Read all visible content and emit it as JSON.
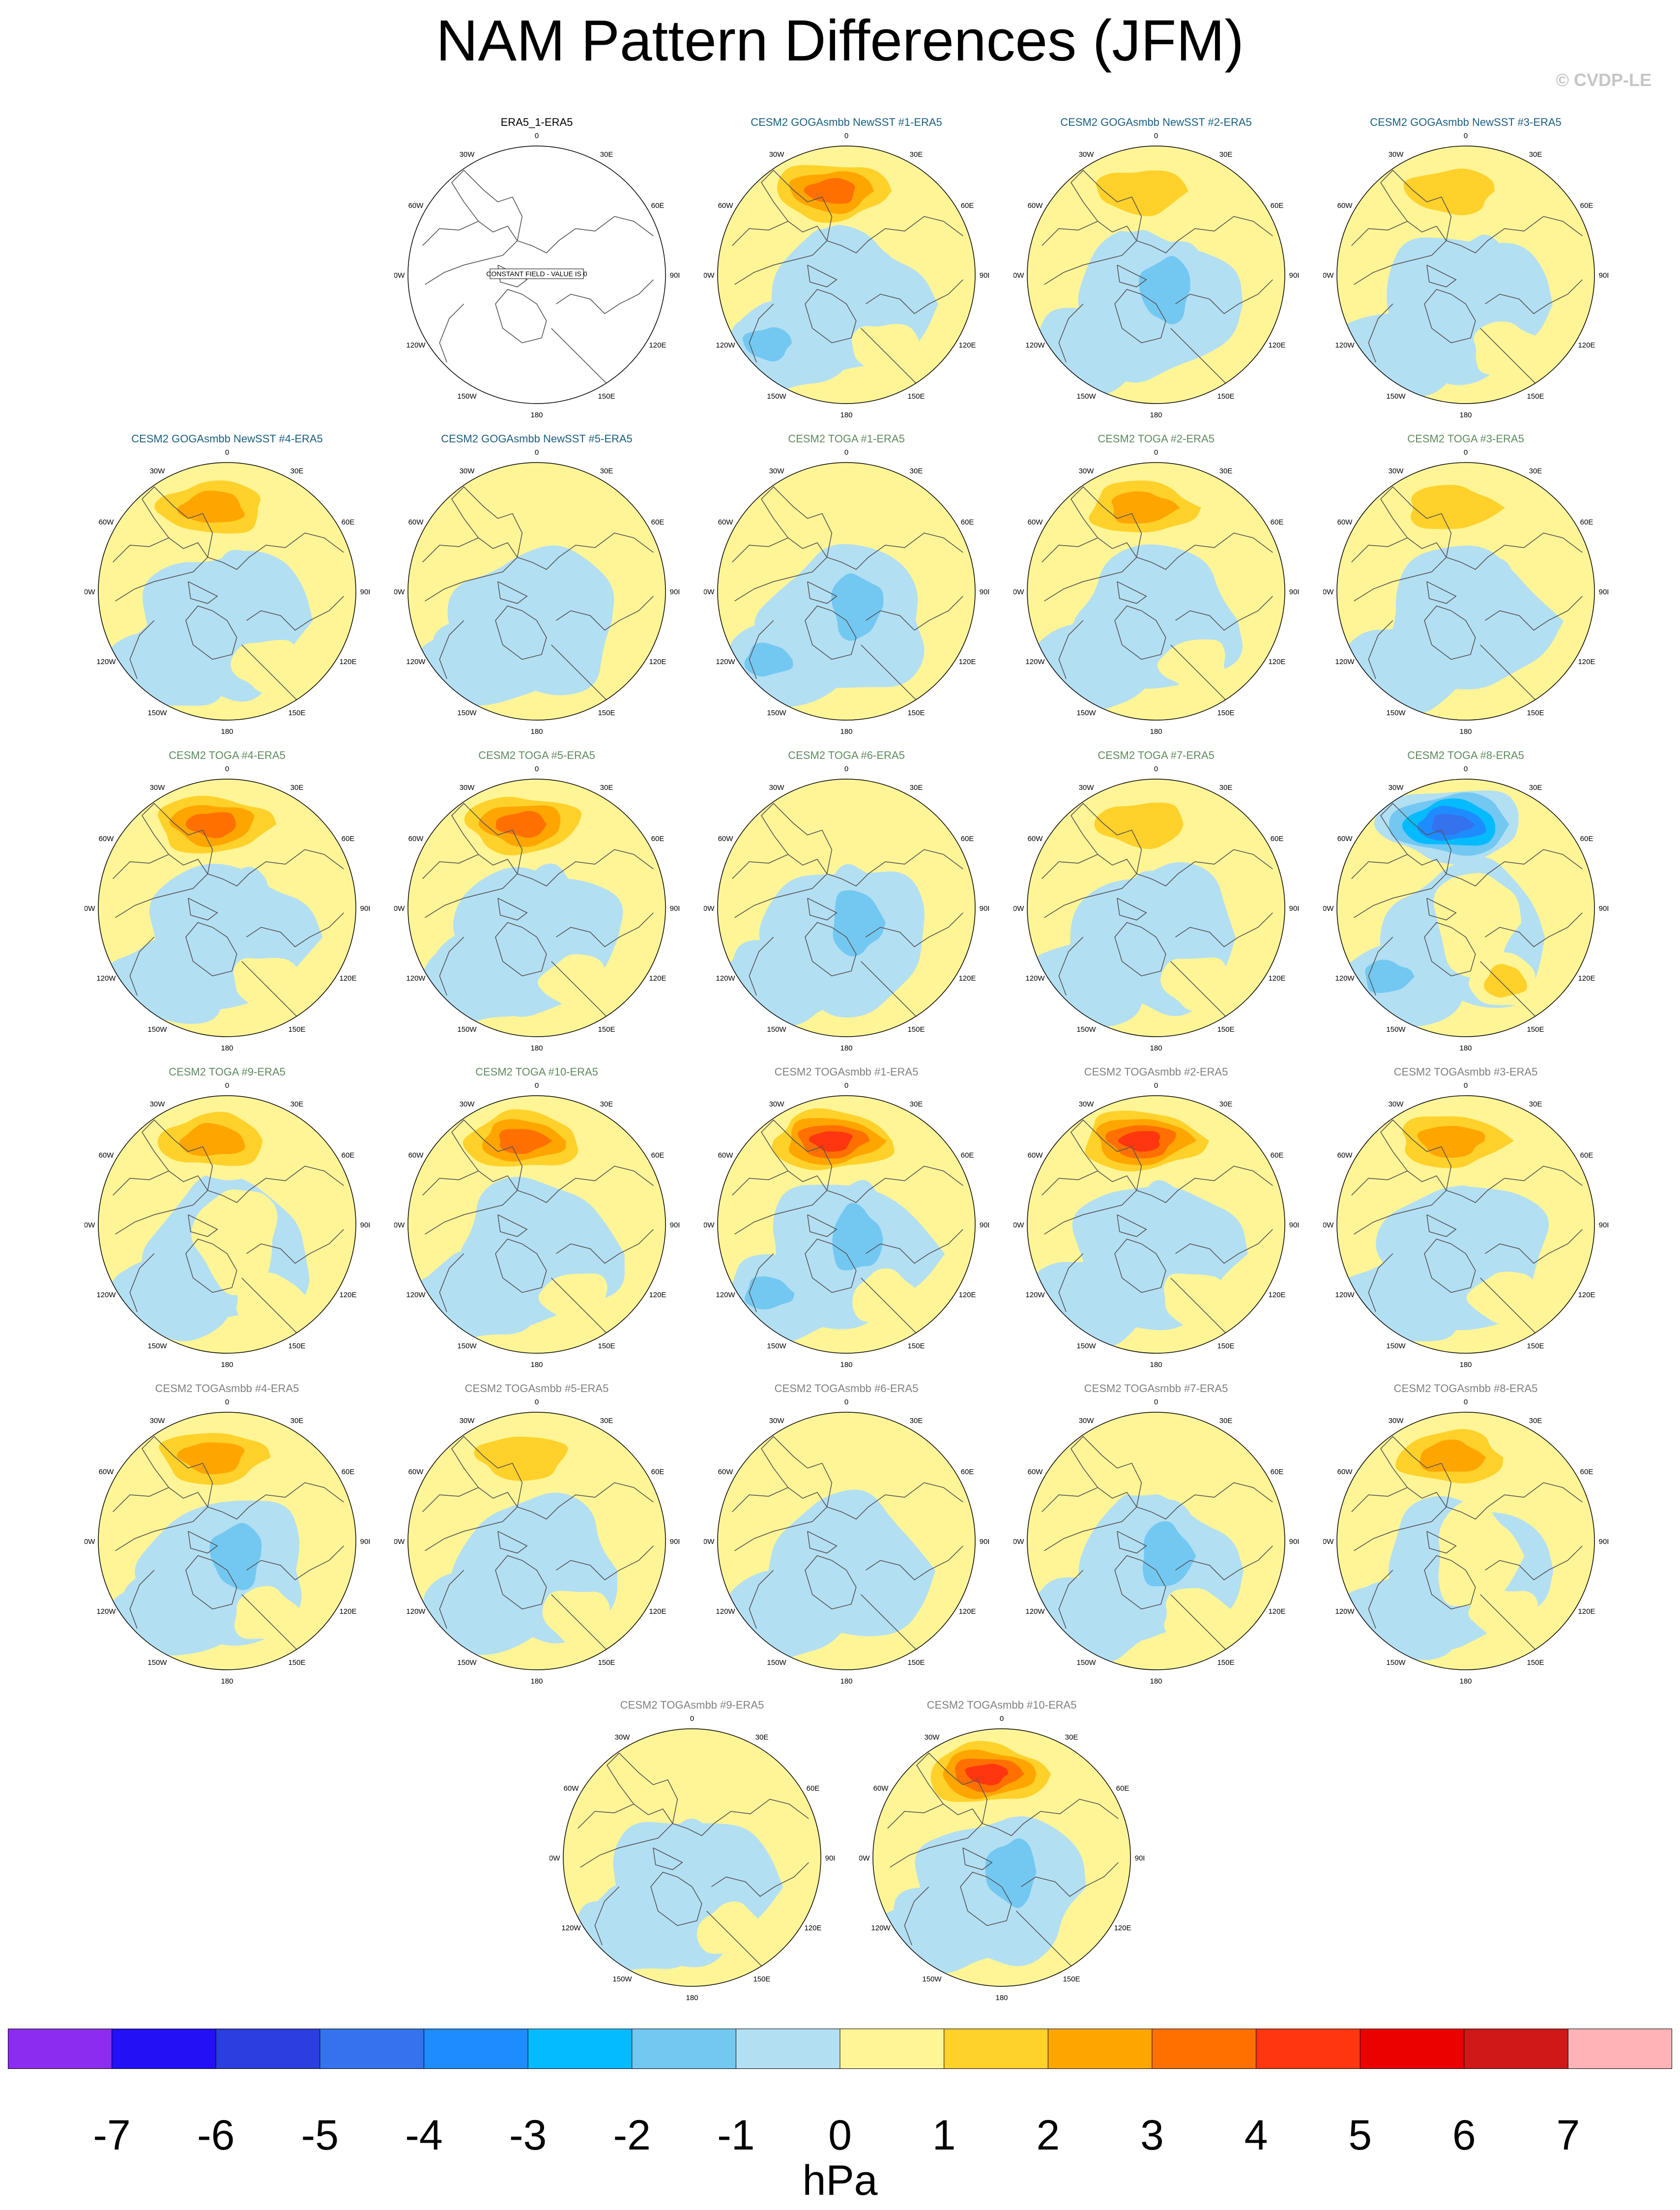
{
  "title": "NAM Pattern Differences (JFM)",
  "credit": "© CVDP-LE",
  "units": "hPa",
  "colorbar": {
    "colors": [
      "#8b2cf0",
      "#2310f5",
      "#2b3ee0",
      "#3472ee",
      "#1e8cff",
      "#05bbff",
      "#73c8f2",
      "#b3dff3",
      "#fff596",
      "#ffd12a",
      "#ffa500",
      "#ff7000",
      "#ff3610",
      "#ea0100",
      "#d01818",
      "#ffb3b6"
    ],
    "labels": [
      "-7",
      "-6",
      "-5",
      "-4",
      "-3",
      "-2",
      "-1",
      "0",
      "1",
      "2",
      "3",
      "4",
      "5",
      "6",
      "7"
    ]
  },
  "map": {
    "lon_labels": [
      {
        "t": "180",
        "a": 180
      },
      {
        "t": "150E",
        "a": 150
      },
      {
        "t": "120E",
        "a": 120
      },
      {
        "t": "90E",
        "a": 90
      },
      {
        "t": "60E",
        "a": 60
      },
      {
        "t": "30E",
        "a": 30
      },
      {
        "t": "0",
        "a": 0
      },
      {
        "t": "30W",
        "a": -30
      },
      {
        "t": "60W",
        "a": -60
      },
      {
        "t": "90W",
        "a": -90
      },
      {
        "t": "120W",
        "a": -120
      },
      {
        "t": "150W",
        "a": -150
      }
    ],
    "constant_field_text": "CONSTANT FIELD - VALUE IS 0"
  },
  "panels": [
    {
      "title": "ERA5_1-ERA5",
      "color": "#000000",
      "type": "obs"
    },
    {
      "title": "CESM2 GOGAsmbb NewSST #1-ERA5",
      "color": "#1a5e80",
      "pole": -1,
      "pac": 4,
      "atl": -2,
      "eur": 1
    },
    {
      "title": "CESM2 GOGAsmbb NewSST #2-ERA5",
      "color": "#1a5e80",
      "pole": -2,
      "pac": 2,
      "atl": -1,
      "eur": 0
    },
    {
      "title": "CESM2 GOGAsmbb NewSST #3-ERA5",
      "color": "#1a5e80",
      "pole": -1,
      "pac": 2,
      "atl": -1,
      "eur": 1
    },
    {
      "title": "CESM2 GOGAsmbb NewSST #4-ERA5",
      "color": "#1a5e80",
      "pole": -1,
      "pac": 3,
      "atl": -1,
      "eur": 1
    },
    {
      "title": "CESM2 GOGAsmbb NewSST #5-ERA5",
      "color": "#1a5e80",
      "pole": -1,
      "pac": 1,
      "atl": -1,
      "eur": 0
    },
    {
      "title": "CESM2 TOGA #1-ERA5",
      "color": "#5e8a5e",
      "pole": -2,
      "pac": 0,
      "atl": -2,
      "eur": 0
    },
    {
      "title": "CESM2 TOGA #2-ERA5",
      "color": "#5e8a5e",
      "pole": -1,
      "pac": 3,
      "atl": -1,
      "eur": 1
    },
    {
      "title": "CESM2 TOGA #3-ERA5",
      "color": "#5e8a5e",
      "pole": -1,
      "pac": 2,
      "atl": -1,
      "eur": 0
    },
    {
      "title": "CESM2 TOGA #4-ERA5",
      "color": "#5e8a5e",
      "pole": -1,
      "pac": 4,
      "atl": -1,
      "eur": 1
    },
    {
      "title": "CESM2 TOGA #5-ERA5",
      "color": "#5e8a5e",
      "pole": -1,
      "pac": 4,
      "atl": -1,
      "eur": 1
    },
    {
      "title": "CESM2 TOGA #6-ERA5",
      "color": "#5e8a5e",
      "pole": -2,
      "pac": 1,
      "atl": -1,
      "eur": 0
    },
    {
      "title": "CESM2 TOGA #7-ERA5",
      "color": "#5e8a5e",
      "pole": -1,
      "pac": 2,
      "atl": -1,
      "eur": 1
    },
    {
      "title": "CESM2 TOGA #8-ERA5",
      "color": "#5e8a5e",
      "pole": 1,
      "pac": -5,
      "atl": -2,
      "eur": 2
    },
    {
      "title": "CESM2 TOGA #9-ERA5",
      "color": "#5e8a5e",
      "pole": 1,
      "pac": 3,
      "atl": -1,
      "eur": 1
    },
    {
      "title": "CESM2 TOGA #10-ERA5",
      "color": "#5e8a5e",
      "pole": 0,
      "pac": 4,
      "atl": -1,
      "eur": 1
    },
    {
      "title": "CESM2 TOGAsmbb #1-ERA5",
      "color": "#808080",
      "pole": -2,
      "pac": 5,
      "atl": -2,
      "eur": 1
    },
    {
      "title": "CESM2 TOGAsmbb #2-ERA5",
      "color": "#808080",
      "pole": -1,
      "pac": 5,
      "atl": -1,
      "eur": 1
    },
    {
      "title": "CESM2 TOGAsmbb #3-ERA5",
      "color": "#808080",
      "pole": -1,
      "pac": 3,
      "atl": -1,
      "eur": 1
    },
    {
      "title": "CESM2 TOGAsmbb #4-ERA5",
      "color": "#808080",
      "pole": -2,
      "pac": 3,
      "atl": -1,
      "eur": 1
    },
    {
      "title": "CESM2 TOGAsmbb #5-ERA5",
      "color": "#808080",
      "pole": -1,
      "pac": 2,
      "atl": -1,
      "eur": 1
    },
    {
      "title": "CESM2 TOGAsmbb #6-ERA5",
      "color": "#808080",
      "pole": -1,
      "pac": 0,
      "atl": -1,
      "eur": 0
    },
    {
      "title": "CESM2 TOGAsmbb #7-ERA5",
      "color": "#808080",
      "pole": -2,
      "pac": 1,
      "atl": -1,
      "eur": 1
    },
    {
      "title": "CESM2 TOGAsmbb #8-ERA5",
      "color": "#808080",
      "pole": 1,
      "pac": 3,
      "atl": -1,
      "eur": 1
    },
    {
      "title": "CESM2 TOGAsmbb #9-ERA5",
      "color": "#808080",
      "pole": -1,
      "pac": 1,
      "atl": -1,
      "eur": 1
    },
    {
      "title": "CESM2 TOGAsmbb #10-ERA5",
      "color": "#808080",
      "pole": -2,
      "pac": 5,
      "atl": -1,
      "eur": 0
    }
  ]
}
